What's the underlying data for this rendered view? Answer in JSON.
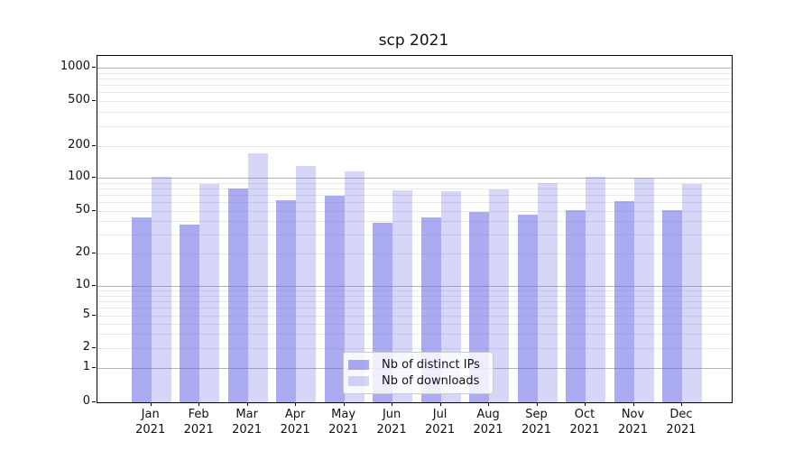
{
  "chart_data": {
    "type": "bar",
    "title": "scp 2021",
    "yscale": "symlog (logarithmic above 1, linear 0-1)",
    "categories": [
      "Jan",
      "Feb",
      "Mar",
      "Apr",
      "May",
      "Jun",
      "Jul",
      "Aug",
      "Sep",
      "Oct",
      "Nov",
      "Dec"
    ],
    "category_year": "2021",
    "series": [
      {
        "name": "Nb of distinct IPs",
        "values": [
          44,
          37,
          80,
          63,
          69,
          39,
          44,
          49,
          46,
          51,
          62,
          51
        ]
      },
      {
        "name": "Nb of downloads",
        "values": [
          101,
          88,
          172,
          130,
          116,
          77,
          76,
          78,
          89,
          102,
          100,
          87
        ]
      }
    ],
    "y_ticks": [
      0,
      1,
      2,
      5,
      10,
      20,
      50,
      100,
      200,
      500,
      1000
    ],
    "ylim": [
      0,
      1250
    ],
    "grid": true,
    "legend_position": "lower center, inside plot"
  },
  "colors": {
    "bar_base": "#6666e6",
    "ips_alpha": 0.55,
    "downloads_alpha": 0.27,
    "grid_major": "#b4b4b4",
    "grid_minor": "#e8e8e8",
    "axis_line": "#000000",
    "legend_border": "#cccccc",
    "text": "#111111",
    "background": "#ffffff"
  }
}
